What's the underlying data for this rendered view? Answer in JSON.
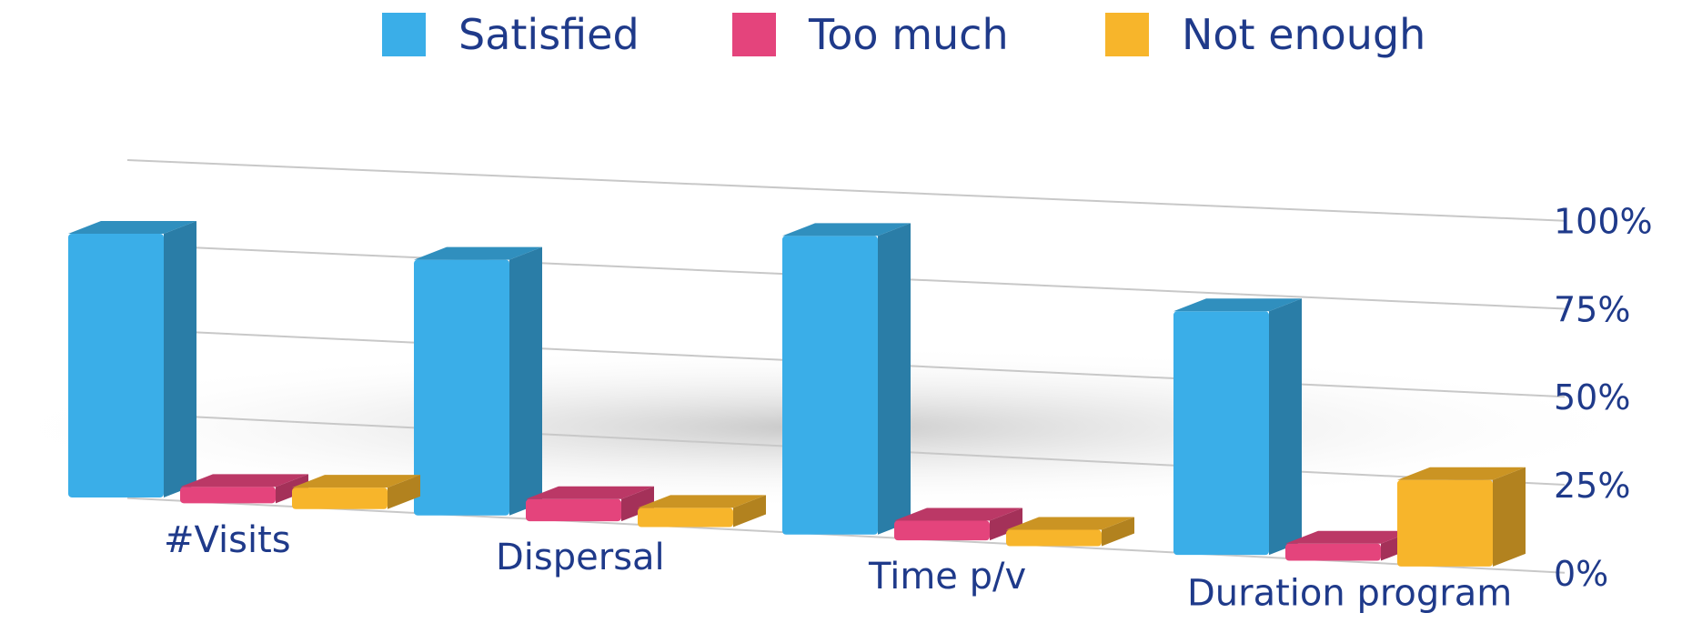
{
  "chart_data": {
    "type": "bar",
    "title": "",
    "xlabel": "",
    "ylabel": "",
    "ylim": [
      0,
      100
    ],
    "yticks": [
      "0%",
      "25%",
      "50%",
      "75%",
      "100%"
    ],
    "categories": [
      "#Visits",
      "Dispersal",
      "Time p/v",
      "Duration program"
    ],
    "series": [
      {
        "name": "Satisfied",
        "color": "#3aaee8",
        "values": [
          88,
          82,
          92,
          72
        ]
      },
      {
        "name": "Too much",
        "color": "#e4447c",
        "values": [
          4,
          7,
          6,
          5
        ]
      },
      {
        "name": "Not enough",
        "color": "#f7b52b",
        "values": [
          7,
          6,
          2,
          25
        ]
      }
    ],
    "legend_position": "top",
    "grid": true
  }
}
